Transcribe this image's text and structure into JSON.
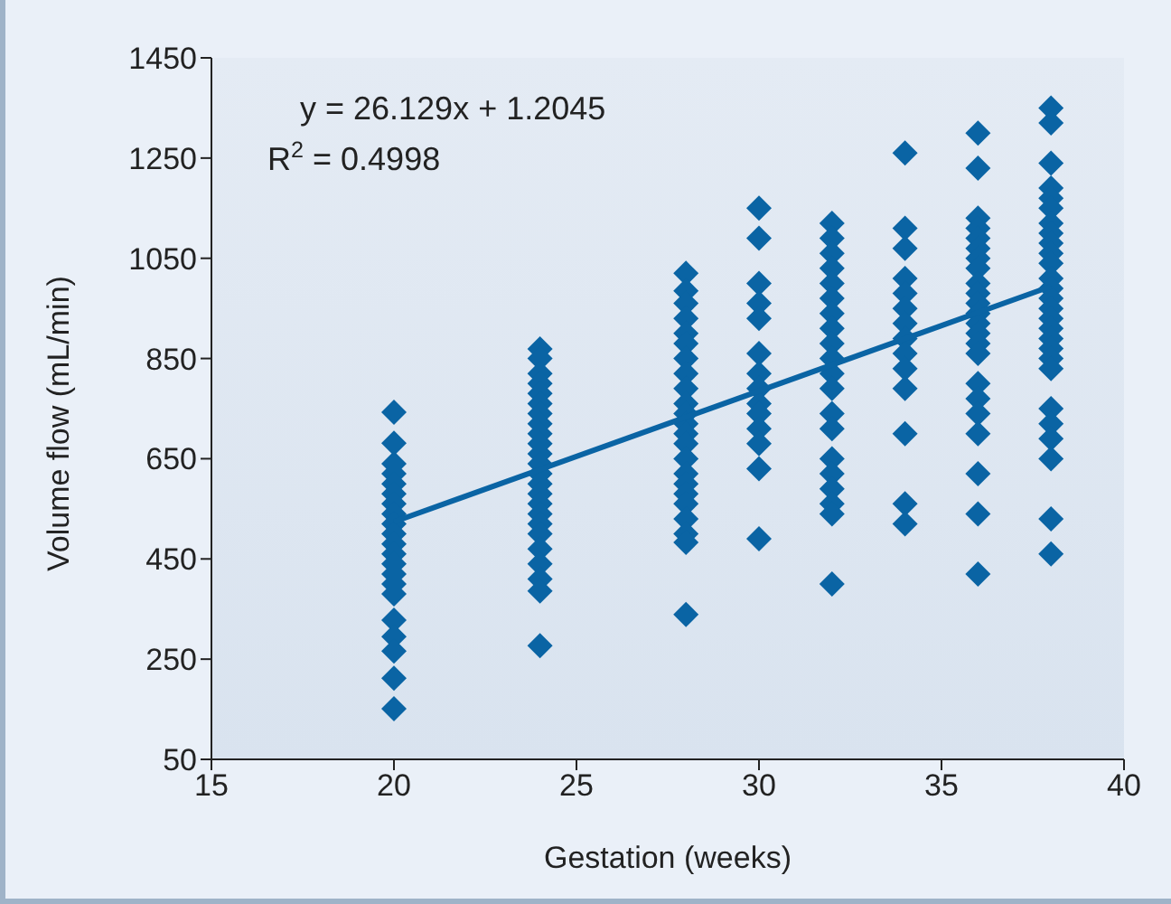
{
  "chart_data": {
    "type": "scatter",
    "xlabel": "Gestation (weeks)",
    "ylabel": "Volume flow (mL/min)",
    "annotations": [
      "y = 26.129x + 1.2045",
      "R$^{2}$ = 0.4998"
    ],
    "xlim": [
      15,
      40
    ],
    "xticks": [
      15,
      20,
      25,
      30,
      35,
      40
    ],
    "ylim": [
      50,
      1450
    ],
    "yticks": [
      50,
      250,
      450,
      650,
      850,
      1050,
      1250,
      1450
    ],
    "grid": false,
    "legend": false,
    "marker": "diamond",
    "series": [
      {
        "color": "#0a64a4",
        "x": [
          20,
          20,
          20,
          20,
          20,
          20,
          20,
          20,
          20,
          20,
          20,
          20,
          20,
          20,
          20,
          20,
          20,
          20,
          20,
          20,
          20,
          24,
          24,
          24,
          24,
          24,
          24,
          24,
          24,
          24,
          24,
          24,
          24,
          24,
          24,
          24,
          24,
          24,
          24,
          24,
          24,
          24,
          24,
          24,
          24,
          28,
          28,
          28,
          28,
          28,
          28,
          28,
          28,
          28,
          28,
          28,
          28,
          28,
          28,
          28,
          28,
          28,
          28,
          28,
          28,
          28,
          28,
          28,
          30,
          30,
          30,
          30,
          30,
          30,
          30,
          30,
          30,
          30,
          30,
          30,
          30,
          30,
          32,
          32,
          32,
          32,
          32,
          32,
          32,
          32,
          32,
          32,
          32,
          32,
          32,
          32,
          32,
          32,
          32,
          32,
          32,
          32,
          34,
          34,
          34,
          34,
          34,
          34,
          34,
          34,
          34,
          34,
          34,
          34,
          34,
          34,
          36,
          36,
          36,
          36,
          36,
          36,
          36,
          36,
          36,
          36,
          36,
          36,
          36,
          36,
          36,
          36,
          36,
          36,
          36,
          36,
          36,
          36,
          36,
          38,
          38,
          38,
          38,
          38,
          38,
          38,
          38,
          38,
          38,
          38,
          38,
          38,
          38,
          38,
          38,
          38,
          38,
          38,
          38,
          38,
          38,
          38,
          38,
          38,
          38,
          38
        ],
        "values": [
          743,
          681,
          640,
          620,
          600,
          580,
          560,
          540,
          520,
          500,
          480,
          460,
          440,
          420,
          400,
          380,
          328,
          295,
          266,
          212,
          151,
          869,
          850,
          820,
          800,
          780,
          760,
          740,
          720,
          700,
          680,
          660,
          640,
          620,
          600,
          580,
          560,
          540,
          520,
          500,
          470,
          440,
          410,
          386,
          277,
          1020,
          985,
          960,
          930,
          900,
          880,
          850,
          820,
          790,
          760,
          740,
          720,
          700,
          680,
          650,
          620,
          600,
          580,
          560,
          530,
          500,
          483,
          339,
          1150,
          1090,
          1000,
          960,
          930,
          860,
          820,
          790,
          760,
          740,
          710,
          680,
          630,
          490,
          1120,
          1090,
          1060,
          1030,
          1000,
          970,
          940,
          910,
          880,
          850,
          820,
          790,
          740,
          710,
          650,
          620,
          590,
          560,
          540,
          400,
          1260,
          1110,
          1070,
          1010,
          980,
          950,
          920,
          890,
          860,
          830,
          790,
          700,
          560,
          520,
          1300,
          1230,
          1130,
          1110,
          1090,
          1070,
          1050,
          1030,
          1000,
          980,
          960,
          940,
          920,
          900,
          880,
          860,
          800,
          770,
          740,
          700,
          620,
          540,
          420,
          1350,
          1320,
          1240,
          1190,
          1170,
          1150,
          1120,
          1100,
          1080,
          1060,
          1040,
          1010,
          990,
          970,
          950,
          930,
          910,
          890,
          870,
          850,
          830,
          750,
          720,
          690,
          650,
          530,
          460
        ]
      },
      {
        "type": "line",
        "marker": "none",
        "color": "#0a64a4",
        "x": [
          20,
          38
        ],
        "values": [
          524,
          994
        ]
      }
    ]
  }
}
